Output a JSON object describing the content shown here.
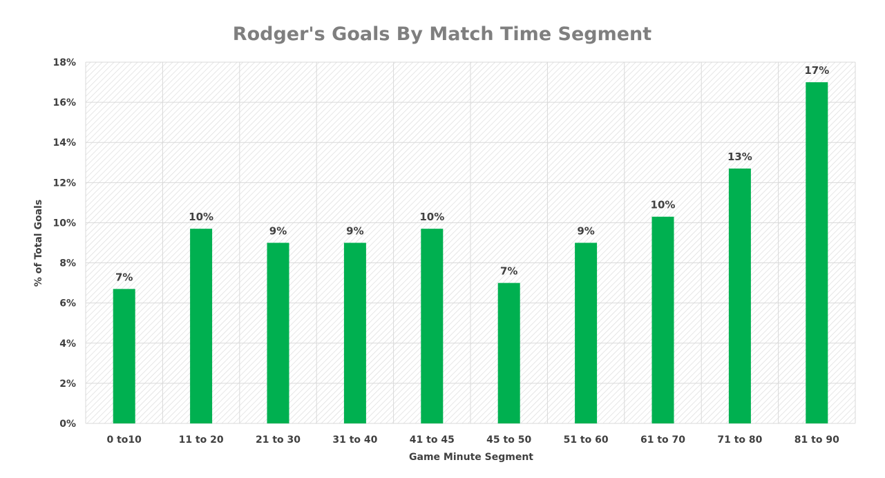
{
  "chart_data": {
    "type": "bar",
    "title": "Rodger's Goals By Match Time Segment",
    "xlabel": "Game Minute Segment",
    "ylabel": "% of Total Goals",
    "categories": [
      "0 to10",
      "11 to 20",
      "21 to 30",
      "31 to 40",
      "41 to 45",
      "45 to 50",
      "51 to 60",
      "61 to 70",
      "71 to 80",
      "81 to 90"
    ],
    "values": [
      6.7,
      9.7,
      9.0,
      9.0,
      9.7,
      7.0,
      9.0,
      10.3,
      12.7,
      17.0
    ],
    "data_labels": [
      "7%",
      "10%",
      "9%",
      "9%",
      "10%",
      "7%",
      "9%",
      "10%",
      "13%",
      "17%"
    ],
    "ylim": [
      0,
      18
    ],
    "y_ticks": [
      "0%",
      "2%",
      "4%",
      "6%",
      "8%",
      "10%",
      "12%",
      "14%",
      "16%",
      "18%"
    ],
    "bar_color": "#00b050",
    "grid": true,
    "plot_background": "hatched-light-gray"
  }
}
